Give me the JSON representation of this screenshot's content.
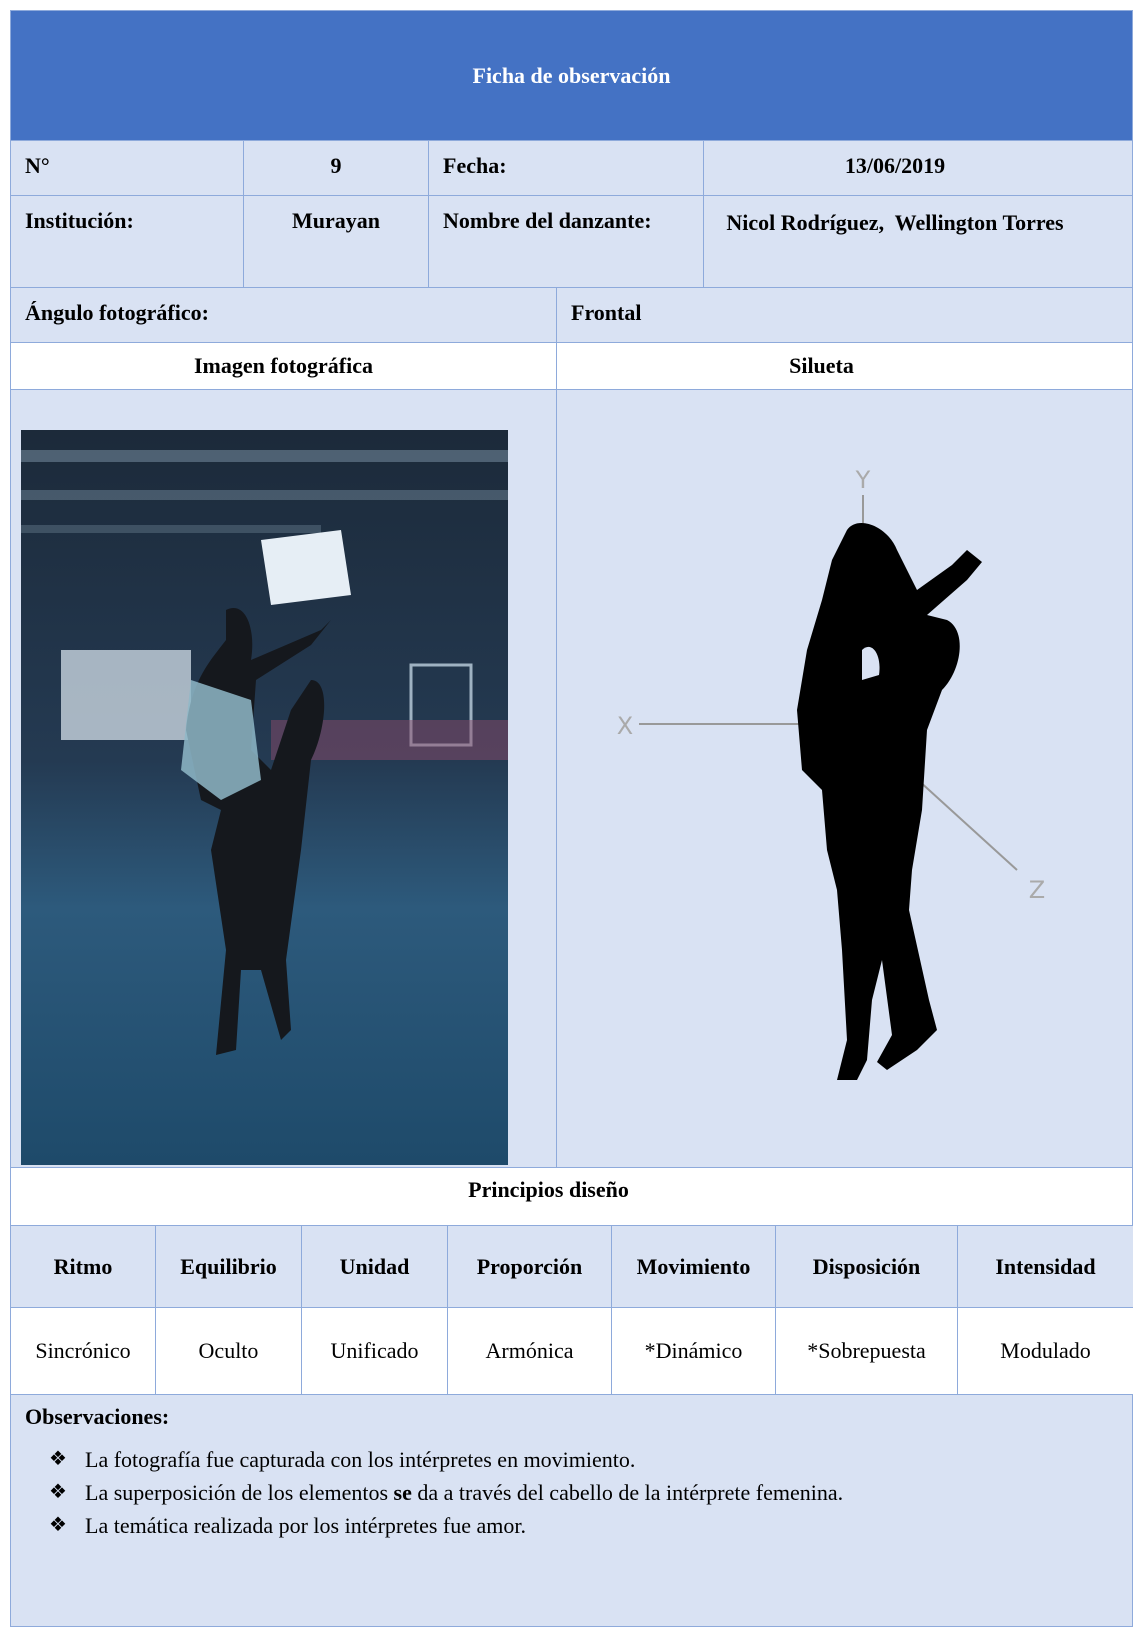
{
  "header": {
    "title": "Ficha de observación"
  },
  "info": {
    "n_label": "N°",
    "n_value": "9",
    "fecha_label": "Fecha:",
    "fecha_value": "13/06/2019",
    "institucion_label": "Institución:",
    "institucion_value": "Murayan",
    "danzante_label": "Nombre del danzante:",
    "danzante_value": "Nicol Rodríguez,  Wellington Torres",
    "angulo_label": "Ángulo fotográfico:",
    "angulo_value": "Frontal"
  },
  "images": {
    "photo_title": "Imagen fotográfica",
    "silhouette_title": "Silueta",
    "axes": [
      "X",
      "Y",
      "Z"
    ]
  },
  "principles": {
    "title": "Principios diseño",
    "headers": [
      "Ritmo",
      "Equilibrio",
      "Unidad",
      "Proporción",
      "Movimiento",
      "Disposición",
      "Intensidad"
    ],
    "values": [
      "Sincrónico",
      "Oculto",
      "Unificado",
      "Armónica",
      "*Dinámico",
      "*Sobrepuesta",
      "Modulado"
    ]
  },
  "observations": {
    "title": "Observaciones:",
    "items": [
      {
        "text": "La fotografía fue capturada con los intérpretes en movimiento."
      },
      {
        "before": "La superposición de los elementos ",
        "bold": "se",
        "after": " da a través del cabello de la intérprete femenina."
      },
      {
        "text": "La temática realizada por los intérpretes fue amor."
      }
    ]
  }
}
